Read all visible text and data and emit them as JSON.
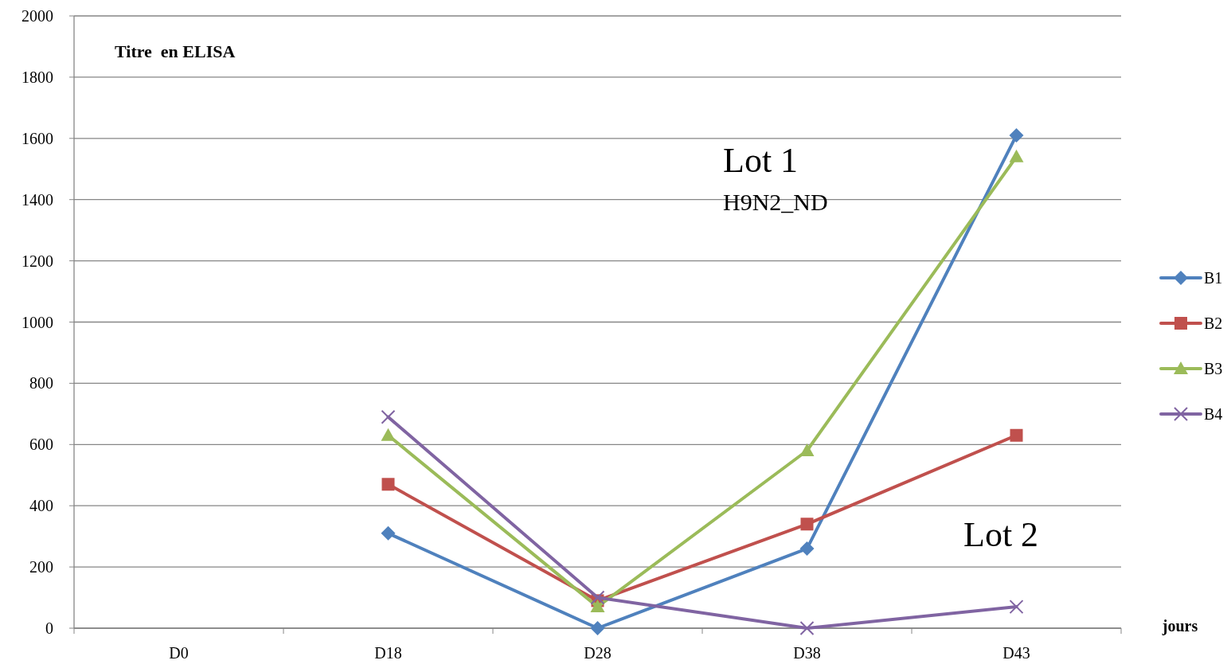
{
  "chart_data": {
    "type": "line",
    "title": "Titre  en ELISA",
    "xlabel": "jours",
    "categories": [
      "D0",
      "D18",
      "D28",
      "D38",
      "D43"
    ],
    "series": [
      {
        "name": "B1",
        "color": "#4f81bd",
        "marker": "diamond",
        "values": [
          null,
          310,
          0,
          260,
          1610
        ]
      },
      {
        "name": "B2",
        "color": "#c0504d",
        "marker": "square",
        "values": [
          null,
          470,
          90,
          340,
          630
        ]
      },
      {
        "name": "B3",
        "color": "#9bbb59",
        "marker": "triangle",
        "values": [
          null,
          630,
          70,
          580,
          1540
        ]
      },
      {
        "name": "B4",
        "color": "#8064a2",
        "marker": "cross",
        "values": [
          null,
          690,
          100,
          0,
          70
        ]
      }
    ],
    "ylim": [
      0,
      2000
    ],
    "yticks": [
      0,
      200,
      400,
      600,
      800,
      1000,
      1200,
      1400,
      1600,
      1800,
      2000
    ],
    "grid": "y",
    "legend": "right",
    "annotations": [
      "Lot 1",
      "H9N2_ND",
      "Lot 2"
    ]
  }
}
